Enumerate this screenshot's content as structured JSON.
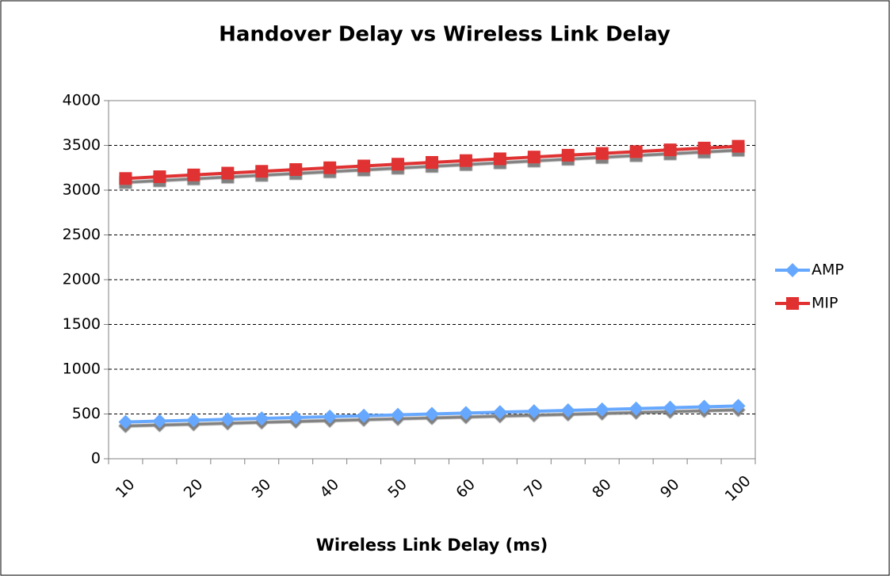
{
  "chart_data": {
    "type": "line",
    "title": "Handover Delay vs Wireless Link Delay",
    "x_label": "Wireless Link Delay (ms)",
    "categories": [
      10,
      null,
      20,
      null,
      30,
      null,
      40,
      null,
      50,
      null,
      60,
      null,
      70,
      null,
      80,
      null,
      90,
      null,
      100
    ],
    "series": [
      {
        "name": "AMP",
        "color": "#66a8ff",
        "marker": "diamond",
        "values": [
          410,
          420,
          430,
          440,
          450,
          460,
          470,
          480,
          490,
          500,
          510,
          520,
          530,
          540,
          550,
          560,
          570,
          580,
          590
        ]
      },
      {
        "name": "MIP",
        "color": "#e03030",
        "marker": "square",
        "values": [
          3130,
          3150,
          3170,
          3190,
          3210,
          3230,
          3250,
          3270,
          3290,
          3310,
          3330,
          3350,
          3370,
          3390,
          3410,
          3430,
          3450,
          3470,
          3490
        ]
      }
    ],
    "ylim": [
      0,
      4000
    ],
    "yticks": [
      0,
      500,
      1000,
      1500,
      2000,
      2500,
      3000,
      3500,
      4000
    ],
    "grid": true,
    "legend": "right"
  }
}
